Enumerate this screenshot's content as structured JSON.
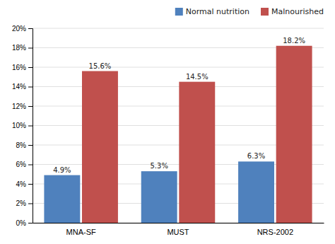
{
  "chart_data": {
    "type": "bar",
    "categories": [
      "MNA-SF",
      "MUST",
      "NRS-2002"
    ],
    "series": [
      {
        "name": "Normal nutrition",
        "color": "#4F81BD",
        "values": [
          4.9,
          5.3,
          6.3
        ],
        "value_labels": [
          "4.9%",
          "5.3%",
          "6.3%"
        ]
      },
      {
        "name": "Malnourished",
        "color": "#C0504D",
        "values": [
          15.6,
          14.5,
          18.2
        ],
        "value_labels": [
          "15.6%",
          "14.5%",
          "18.2%"
        ]
      }
    ],
    "ylim": [
      0,
      20
    ],
    "yticks": [
      {
        "value": 0,
        "label": "0%"
      },
      {
        "value": 2,
        "label": "2%"
      },
      {
        "value": 4,
        "label": "4%"
      },
      {
        "value": 6,
        "label": "6%"
      },
      {
        "value": 8,
        "label": "8%"
      },
      {
        "value": 10,
        "label": "10%"
      },
      {
        "value": 12,
        "label": "12%"
      },
      {
        "value": 14,
        "label": "14%"
      },
      {
        "value": 16,
        "label": "16%"
      },
      {
        "value": 18,
        "label": "18%"
      },
      {
        "value": 20,
        "label": "20%"
      }
    ],
    "grid": true,
    "legend": "upper right",
    "data_labels": true
  }
}
